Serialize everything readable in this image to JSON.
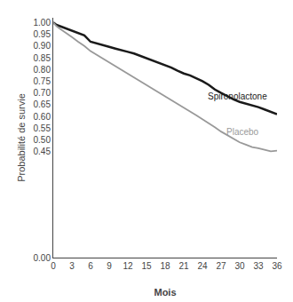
{
  "chart_data": {
    "type": "line",
    "xlabel": "Mois",
    "ylabel": "Probabilité de survie",
    "xlim": [
      0,
      36
    ],
    "ylim": [
      0.0,
      1.02
    ],
    "xticks": [
      0,
      3,
      6,
      9,
      12,
      15,
      18,
      21,
      24,
      27,
      30,
      33,
      36
    ],
    "yticks": [
      {
        "value": 0,
        "label": "0.00"
      },
      0.45,
      {
        "value": 0.5,
        "label": "0.50"
      },
      0.55,
      {
        "value": 0.6,
        "label": "0.60"
      },
      0.65,
      {
        "value": 0.7,
        "label": "0.70"
      },
      0.75,
      {
        "value": 0.8,
        "label": "0.80"
      },
      0.85,
      {
        "value": 0.9,
        "label": "0.90"
      },
      0.95,
      {
        "value": 1.0,
        "label": "1.00"
      }
    ],
    "grid": false,
    "x": [
      0,
      0.5,
      1,
      2,
      3,
      4,
      5,
      6,
      7,
      8,
      9,
      10,
      11,
      12,
      13,
      14,
      15,
      16,
      17,
      18,
      19,
      20,
      21,
      22,
      23,
      24,
      25,
      26,
      27,
      28,
      29,
      30,
      31,
      32,
      33,
      34,
      35,
      36
    ],
    "series": [
      {
        "color": "#1a1a1a",
        "values": [
          1.0,
          0.99,
          0.985,
          0.975,
          0.963,
          0.955,
          0.945,
          0.918,
          0.91,
          0.904,
          0.896,
          0.889,
          0.883,
          0.875,
          0.868,
          0.858,
          0.848,
          0.84,
          0.83,
          0.818,
          0.808,
          0.795,
          0.783,
          0.775,
          0.763,
          0.75,
          0.735,
          0.715,
          0.7,
          0.685,
          0.673,
          0.662,
          0.655,
          0.648,
          0.64,
          0.63,
          0.62,
          0.61
        ]
      },
      {
        "color": "#999999",
        "values": [
          1.0,
          0.985,
          0.975,
          0.958,
          0.938,
          0.918,
          0.9,
          0.878,
          0.862,
          0.845,
          0.83,
          0.815,
          0.8,
          0.782,
          0.768,
          0.752,
          0.736,
          0.72,
          0.703,
          0.688,
          0.672,
          0.655,
          0.638,
          0.622,
          0.605,
          0.588,
          0.572,
          0.554,
          0.536,
          0.52,
          0.503,
          0.49,
          0.48,
          0.47,
          0.465,
          0.458,
          0.452,
          0.455
        ]
      }
    ],
    "annotations": [
      {
        "text": "Spironolactone",
        "x": 24.5,
        "y": 0.685,
        "color": "#1a1a1a"
      },
      {
        "text": "Placebo",
        "x": 27.5,
        "y": 0.535,
        "color": "#999999"
      }
    ]
  }
}
